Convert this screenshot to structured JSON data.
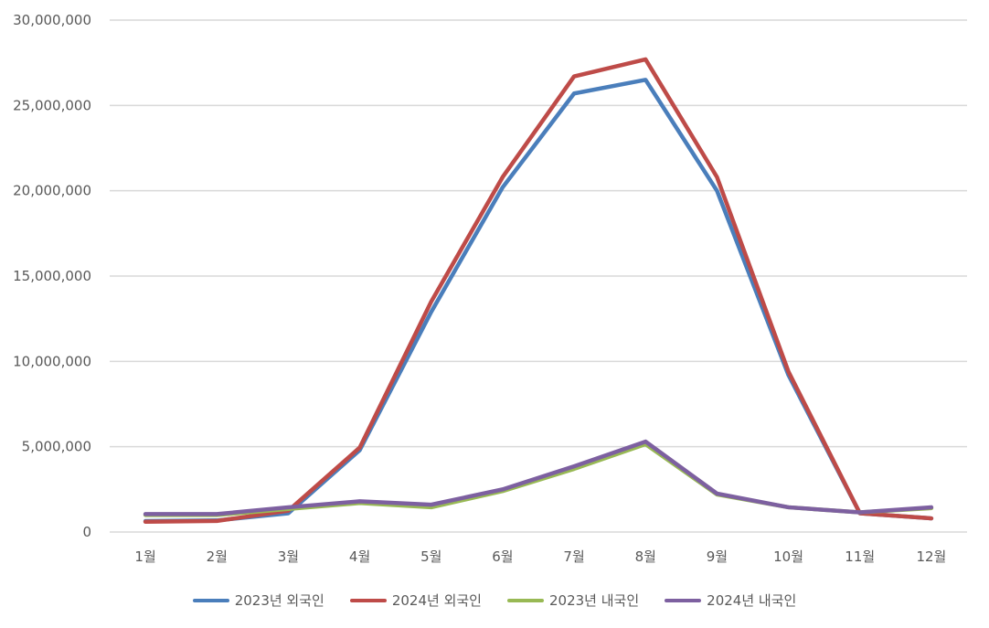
{
  "chart_data": {
    "type": "line",
    "categories": [
      "1월",
      "2월",
      "3월",
      "4월",
      "5월",
      "6월",
      "7월",
      "8월",
      "9월",
      "10월",
      "11월",
      "12월"
    ],
    "ylim": [
      0,
      30000000
    ],
    "yticks": [
      0,
      5000000,
      10000000,
      15000000,
      20000000,
      25000000,
      30000000
    ],
    "ytick_labels": [
      "0",
      "5,000,000",
      "10,000,000",
      "15,000,000",
      "20,000,000",
      "25,000,000",
      "30,000,000"
    ],
    "grid": true,
    "legend_position": "bottom",
    "series": [
      {
        "name": "2023년 외국인",
        "color": "#4a7ebb",
        "values": [
          640000,
          680000,
          1100000,
          4800000,
          12900000,
          20200000,
          25700000,
          26500000,
          20000000,
          9200000,
          1100000,
          800000
        ]
      },
      {
        "name": "2024년 외국인",
        "color": "#be4b48",
        "values": [
          600000,
          650000,
          1250000,
          4950000,
          13500000,
          20800000,
          26700000,
          27700000,
          20800000,
          9400000,
          1100000,
          800000
        ]
      },
      {
        "name": "2023년 내국인",
        "color": "#98b954",
        "values": [
          1000000,
          1000000,
          1350000,
          1700000,
          1450000,
          2400000,
          3700000,
          5150000,
          2200000,
          1450000,
          1150000,
          1400000
        ]
      },
      {
        "name": "2024년 내국인",
        "color": "#7d60a0",
        "values": [
          1050000,
          1050000,
          1450000,
          1800000,
          1600000,
          2500000,
          3850000,
          5300000,
          2250000,
          1450000,
          1150000,
          1450000
        ]
      }
    ]
  }
}
